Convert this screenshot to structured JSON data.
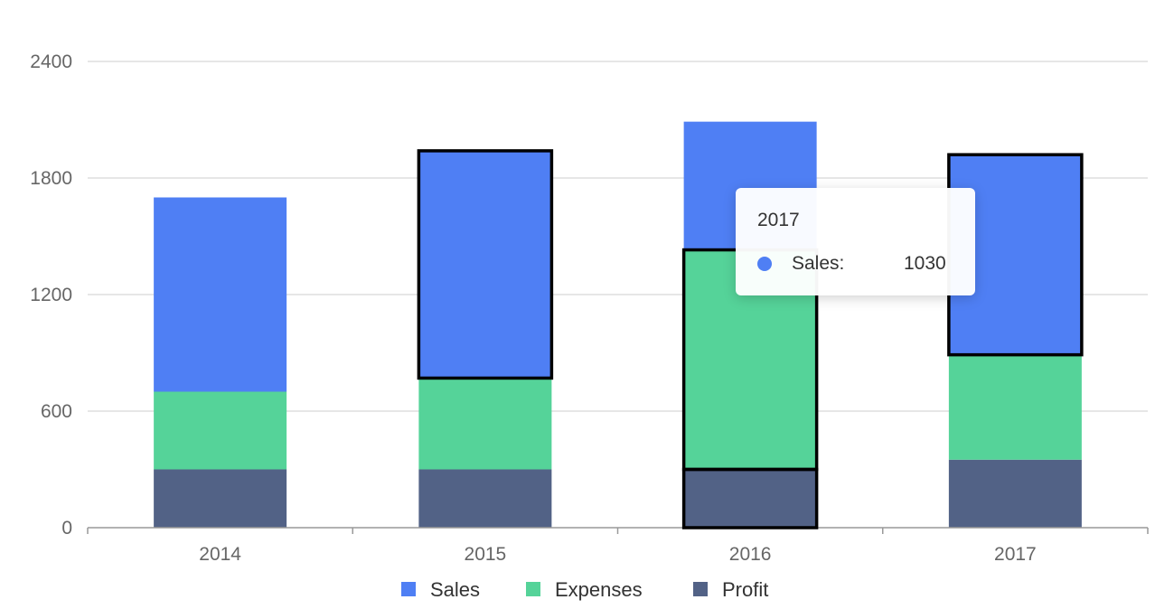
{
  "colors": {
    "sales": "#4f7ff4",
    "expenses": "#55d399",
    "profit": "#526286",
    "grid": "#cccccc",
    "axis": "#666666",
    "highlight": "#000000"
  },
  "chart_data": {
    "type": "bar",
    "stacked": true,
    "categories": [
      "2014",
      "2015",
      "2016",
      "2017"
    ],
    "ylim": [
      0,
      2400
    ],
    "yticks": [
      0,
      600,
      1200,
      1800,
      2400
    ],
    "series": [
      {
        "name": "Profit",
        "key": "profit",
        "values": [
          300,
          300,
          300,
          350
        ]
      },
      {
        "name": "Expenses",
        "key": "expenses",
        "values": [
          400,
          470,
          1130,
          540
        ]
      },
      {
        "name": "Sales",
        "key": "sales",
        "values": [
          1000,
          1170,
          660,
          1030
        ]
      }
    ],
    "highlighted": [
      {
        "category": "2015",
        "series": "Sales"
      },
      {
        "category": "2016",
        "series": "Expenses"
      },
      {
        "category": "2016",
        "series": "Profit"
      },
      {
        "category": "2017",
        "series": "Sales"
      }
    ],
    "legend": [
      "Sales",
      "Expenses",
      "Profit"
    ],
    "legend_position": "bottom-center",
    "title": "",
    "xlabel": "",
    "ylabel": ""
  },
  "tooltip": {
    "title": "2017",
    "series_label": "Sales:",
    "value": "1030"
  }
}
